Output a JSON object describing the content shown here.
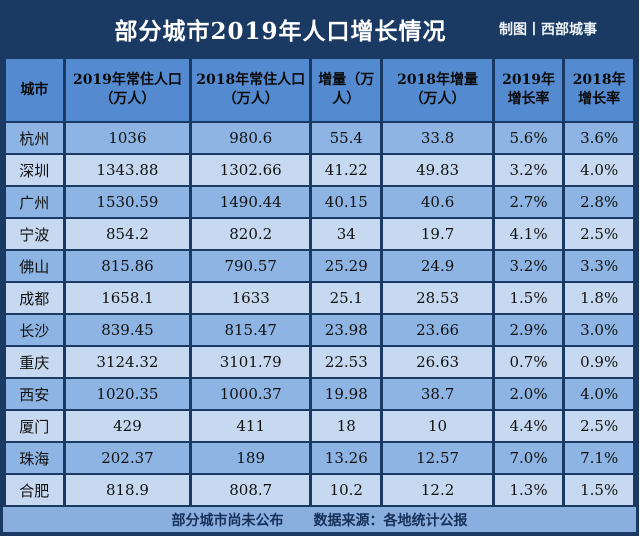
{
  "header": {
    "credit": "制图丨西部城事"
  },
  "chart_data": {
    "type": "table",
    "title": "部分城市2019年人口增长情况",
    "columns": [
      "城市",
      "2019年常住人口（万人）",
      "2018年常住人口（万人）",
      "增量（万人）",
      "2018年增量（万人）",
      "2019年增长率",
      "2018年增长率"
    ],
    "rows": [
      [
        "杭州",
        "1036",
        "980.6",
        "55.4",
        "33.8",
        "5.6%",
        "3.6%"
      ],
      [
        "深圳",
        "1343.88",
        "1302.66",
        "41.22",
        "49.83",
        "3.2%",
        "4.0%"
      ],
      [
        "广州",
        "1530.59",
        "1490.44",
        "40.15",
        "40.6",
        "2.7%",
        "2.8%"
      ],
      [
        "宁波",
        "854.2",
        "820.2",
        "34",
        "19.7",
        "4.1%",
        "2.5%"
      ],
      [
        "佛山",
        "815.86",
        "790.57",
        "25.29",
        "24.9",
        "3.2%",
        "3.3%"
      ],
      [
        "成都",
        "1658.1",
        "1633",
        "25.1",
        "28.53",
        "1.5%",
        "1.8%"
      ],
      [
        "长沙",
        "839.45",
        "815.47",
        "23.98",
        "23.66",
        "2.9%",
        "3.0%"
      ],
      [
        "重庆",
        "3124.32",
        "3101.79",
        "22.53",
        "26.63",
        "0.7%",
        "0.9%"
      ],
      [
        "西安",
        "1020.35",
        "1000.37",
        "19.98",
        "38.7",
        "2.0%",
        "4.0%"
      ],
      [
        "厦门",
        "429",
        "411",
        "18",
        "10",
        "4.4%",
        "2.5%"
      ],
      [
        "珠海",
        "202.37",
        "189",
        "13.26",
        "12.57",
        "7.0%",
        "7.1%"
      ],
      [
        "合肥",
        "818.9",
        "808.7",
        "10.2",
        "12.2",
        "1.3%",
        "1.5%"
      ]
    ],
    "footnote": "部分城市尚未公布",
    "source": "数据来源：各地统计公报",
    "layout": {
      "row_striping": "first row dark, alternating",
      "legend": "none",
      "grid": "dark navy cell borders"
    }
  },
  "colors": {
    "frame_navy": "#1a3a63",
    "header_bg": "#548bd0",
    "row_dark": "#8db4e2",
    "row_light": "#c6d9f1",
    "footer_bg": "#8aaede",
    "title_text": "#ffffff",
    "cell_text": "#111111"
  }
}
